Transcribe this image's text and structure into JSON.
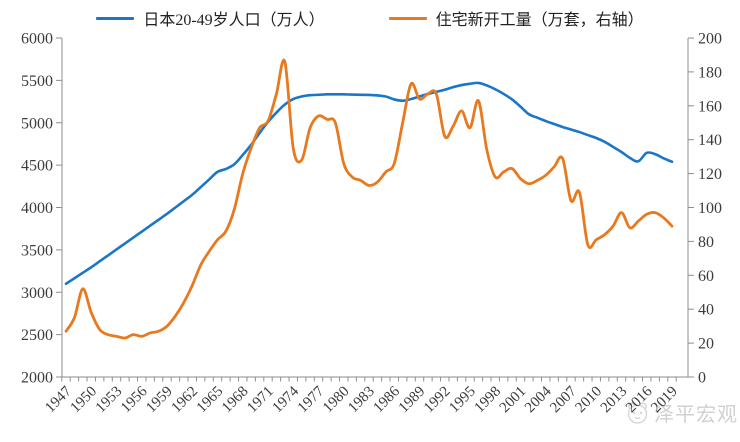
{
  "legend": {
    "items": [
      {
        "label": "日本20-49岁人口（万人）",
        "color": "#1B76C8",
        "axis": "left"
      },
      {
        "label": "住宅新开工量（万套，右轴）",
        "color": "#E8791E",
        "axis": "right"
      }
    ]
  },
  "watermark": {
    "text": "泽平宏观",
    "icon": "mascot-icon"
  },
  "chart_data": {
    "type": "line",
    "title": "",
    "grid": false,
    "legend_position": "top",
    "x_label_every_years": 3,
    "x_tick_every_years": 1,
    "x": [
      1947,
      1948,
      1949,
      1950,
      1951,
      1952,
      1953,
      1954,
      1955,
      1956,
      1957,
      1958,
      1959,
      1960,
      1961,
      1962,
      1963,
      1964,
      1965,
      1966,
      1967,
      1968,
      1969,
      1970,
      1971,
      1972,
      1973,
      1974,
      1975,
      1976,
      1977,
      1978,
      1979,
      1980,
      1981,
      1982,
      1983,
      1984,
      1985,
      1986,
      1987,
      1988,
      1989,
      1990,
      1991,
      1992,
      1993,
      1994,
      1995,
      1996,
      1997,
      1998,
      1999,
      2000,
      2001,
      2002,
      2003,
      2004,
      2005,
      2006,
      2007,
      2008,
      2009,
      2010,
      2011,
      2012,
      2013,
      2014,
      2015,
      2016,
      2017,
      2018,
      2019
    ],
    "x_axis_labels": [
      "1947",
      "1950",
      "1953",
      "1956",
      "1959",
      "1962",
      "1965",
      "1968",
      "1971",
      "1974",
      "1977",
      "1980",
      "1983",
      "1986",
      "1989",
      "1992",
      "1995",
      "1998",
      "2001",
      "2004",
      "2007",
      "2010",
      "2013",
      "2016",
      "2019"
    ],
    "left_axis": {
      "min": 2000,
      "max": 6000,
      "step": 500,
      "ticks": [
        2000,
        2500,
        3000,
        3500,
        4000,
        4500,
        5000,
        5500,
        6000
      ]
    },
    "right_axis": {
      "min": 0,
      "max": 200,
      "step": 20,
      "ticks": [
        0,
        20,
        40,
        60,
        80,
        100,
        120,
        140,
        160,
        180,
        200
      ]
    },
    "series": [
      {
        "name": "日本20-49岁人口（万人）",
        "axis": "left",
        "color": "#1B76C8",
        "values": [
          3100,
          3165,
          3230,
          3295,
          3365,
          3435,
          3505,
          3575,
          3645,
          3715,
          3785,
          3855,
          3925,
          4000,
          4075,
          4150,
          4240,
          4330,
          4420,
          4455,
          4510,
          4620,
          4740,
          4880,
          5010,
          5120,
          5215,
          5280,
          5310,
          5325,
          5330,
          5335,
          5335,
          5335,
          5332,
          5330,
          5328,
          5322,
          5310,
          5275,
          5260,
          5280,
          5310,
          5340,
          5365,
          5390,
          5420,
          5445,
          5460,
          5470,
          5440,
          5395,
          5340,
          5275,
          5190,
          5100,
          5060,
          5020,
          4985,
          4950,
          4920,
          4890,
          4855,
          4820,
          4775,
          4715,
          4655,
          4585,
          4545,
          4645,
          4630,
          4580,
          4540
        ]
      },
      {
        "name": "住宅新开工量（万套，右轴）",
        "axis": "right",
        "color": "#E8791E",
        "values": [
          27,
          35,
          52,
          38,
          28,
          25,
          24,
          23,
          25,
          24,
          26,
          27,
          30,
          36,
          44,
          54,
          66,
          74,
          81,
          86,
          99,
          120,
          135,
          147,
          151,
          167,
          186,
          135,
          128,
          147,
          154,
          152,
          150,
          126,
          118,
          116,
          113,
          115,
          121,
          126,
          150,
          173,
          164,
          167,
          167,
          142,
          148,
          157,
          147,
          163,
          134,
          118,
          121,
          123,
          117,
          114,
          116,
          119,
          124,
          129,
          104,
          109,
          78,
          81,
          84,
          89,
          97,
          88,
          92,
          96,
          97,
          94,
          89
        ]
      }
    ]
  }
}
